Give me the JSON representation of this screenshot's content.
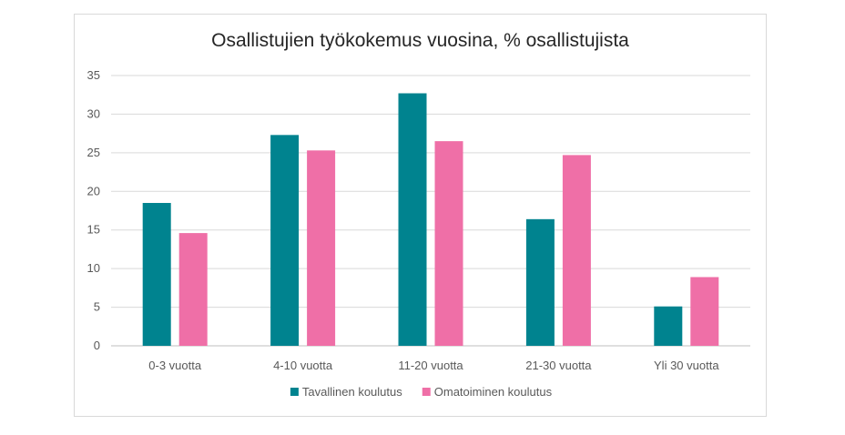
{
  "chart_data": {
    "type": "bar",
    "title": "Osallistujien työkokemus vuosina, % osallistujista",
    "xlabel": "",
    "ylabel": "",
    "categories": [
      "0-3 vuotta",
      "4-10 vuotta",
      "11-20 vuotta",
      "21-30 vuotta",
      "Yli 30 vuotta"
    ],
    "series": [
      {
        "name": "Tavallinen koulutus",
        "color": "#00838f",
        "values": [
          18.5,
          27.3,
          32.7,
          16.4,
          5.1
        ]
      },
      {
        "name": "Omatoiminen koulutus",
        "color": "#ef6fa7",
        "values": [
          14.6,
          25.3,
          26.5,
          24.7,
          8.9
        ]
      }
    ],
    "ylim": [
      0,
      35
    ],
    "yticks": [
      0,
      5,
      10,
      15,
      20,
      25,
      30,
      35
    ],
    "grid": true,
    "legend_position": "bottom"
  }
}
